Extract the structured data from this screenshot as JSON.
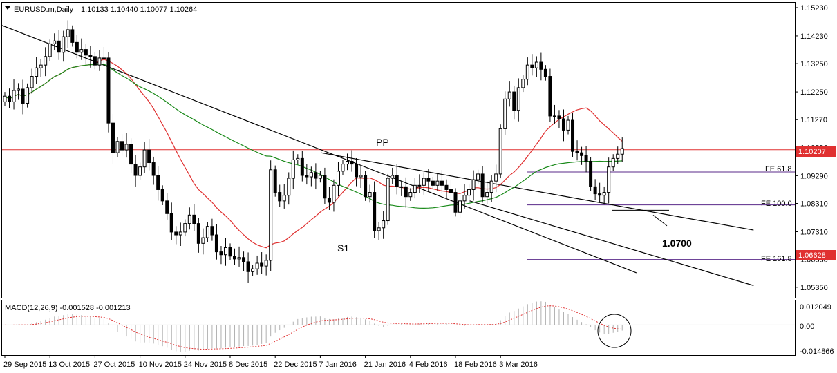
{
  "header": {
    "symbol_label": "EURUSD.m,Daily",
    "ohlc": "1.10133 1.10440 1.10077 1.10264",
    "dropdown_icon": "triangle-down-icon"
  },
  "macd": {
    "label": "MACD(12,26,9) -0.001528 -0.001213",
    "axis_labels": [
      "0.012049",
      "0.00",
      "-0.014866"
    ],
    "ylim": [
      -0.014866,
      0.012049
    ]
  },
  "colors": {
    "candle": "#000000",
    "ma_fast": "#e03030",
    "ma_slow": "#1a8a1a",
    "horizontal_level": "#e03030",
    "fib": "#5a2a8a",
    "trendline": "#000000",
    "current_price_bg": "#e03030"
  },
  "annotations": {
    "pp": "PP",
    "s1": "S1",
    "target": "1.0700",
    "fib_levels": [
      {
        "label": "FE 61.8",
        "price": 1.0942
      },
      {
        "label": "FE 100.0",
        "price": 1.0826
      },
      {
        "label": "FE 161.8",
        "price": 1.0633
      }
    ],
    "levels": [
      {
        "name": "PP",
        "price": 1.10207
      },
      {
        "name": "S1",
        "price": 1.06628
      }
    ],
    "current_price_tag": "1.10207",
    "s1_price_tag": "1.06628"
  },
  "chart_data": {
    "type": "candlestick",
    "title": "EURUSD.m,Daily",
    "ylim": [
      1.0498,
      1.154
    ],
    "y_ticks": [
      "1.15230",
      "1.14230",
      "1.13250",
      "1.12250",
      "1.11270",
      "1.10290",
      "1.09290",
      "1.08310",
      "1.07310",
      "1.06330",
      "1.05350"
    ],
    "x_ticks": [
      "29 Sep 2015",
      "13 Oct 2015",
      "27 Oct 2015",
      "10 Nov 2015",
      "24 Nov 2015",
      "8 Dec 2015",
      "22 Dec 2015",
      "7 Jan 2016",
      "21 Jan 2016",
      "4 Feb 2016",
      "18 Feb 2016",
      "3 Mar 2016"
    ],
    "grid": false,
    "close_series": [
      1.121,
      1.119,
      1.123,
      1.1235,
      1.1185,
      1.124,
      1.128,
      1.131,
      1.132,
      1.135,
      1.1395,
      1.1405,
      1.1365,
      1.142,
      1.1445,
      1.14,
      1.1365,
      1.1375,
      1.1355,
      1.135,
      1.132,
      1.1345,
      1.1345,
      1.1115,
      1.101,
      1.105,
      1.102,
      1.104,
      1.097,
      1.093,
      1.096,
      1.102,
      1.0975,
      1.093,
      1.088,
      1.084,
      1.0795,
      1.073,
      1.072,
      1.073,
      1.076,
      1.079,
      1.076,
      1.069,
      1.071,
      1.075,
      1.072,
      1.066,
      1.065,
      1.0675,
      1.0645,
      1.0635,
      1.064,
      1.0625,
      1.059,
      1.06,
      1.062,
      1.061,
      1.063,
      1.095,
      1.087,
      1.084,
      1.086,
      1.092,
      1.0985,
      1.099,
      1.093,
      1.0925,
      1.094,
      1.092,
      1.093,
      1.085,
      1.0835,
      1.0895,
      1.0945,
      1.097,
      1.098,
      1.097,
      1.0925,
      1.093,
      1.0855,
      1.087,
      1.0735,
      1.0745,
      1.077,
      1.092,
      1.093,
      1.089,
      1.089,
      1.0855,
      1.087,
      1.0895,
      1.0895,
      1.092,
      1.091,
      1.0895,
      1.091,
      1.0895,
      1.088,
      1.087,
      1.08,
      1.084,
      1.086,
      1.088,
      1.0915,
      1.0935,
      1.0855,
      1.087,
      1.091,
      1.0935,
      1.1095,
      1.12,
      1.1225,
      1.116,
      1.124,
      1.127,
      1.132,
      1.131,
      1.133,
      1.1305,
      1.128,
      1.114,
      1.114,
      1.113,
      1.109,
      1.1125,
      1.1015,
      1.101,
      1.1,
      1.098,
      1.089,
      1.0865,
      1.086,
      1.087,
      1.096,
      1.099,
      1.1005,
      1.1025
    ]
  }
}
